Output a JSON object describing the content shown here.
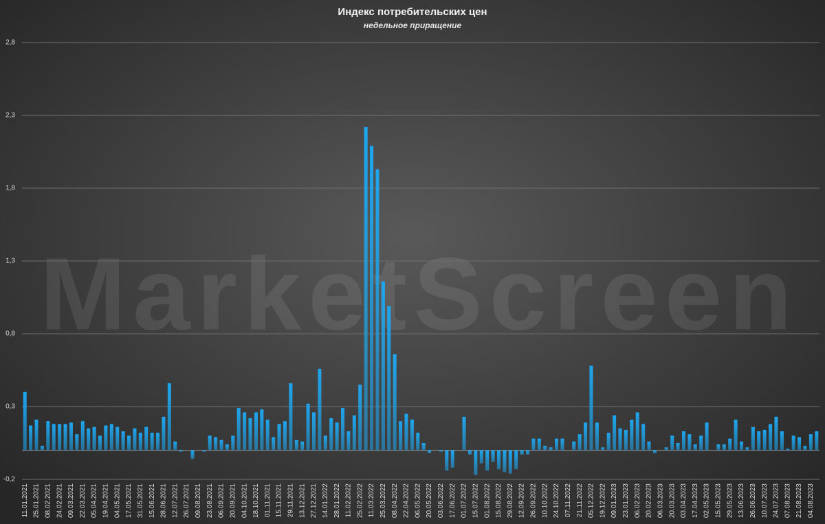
{
  "chart_data": {
    "type": "bar",
    "title": "Индекс потребительских цен",
    "subtitle": "недельное приращение",
    "watermark": "MarketScreen",
    "categories": [
      "11.01.2021",
      null,
      "25.01.2021",
      null,
      "08.02.2021",
      null,
      "24.02.2021",
      null,
      "09.03.2021",
      null,
      "22.03.2021",
      null,
      "05.04.2021",
      null,
      "19.04.2021",
      null,
      "04.05.2021",
      null,
      "17.05.2021",
      null,
      "31.05.2021",
      null,
      "15.06.2021",
      null,
      "28.06.2021",
      null,
      "12.07.2021",
      null,
      "26.07.2021",
      null,
      "09.08.2021",
      null,
      "23.08.2021",
      null,
      "06.09.2021",
      null,
      "20.09.2021",
      null,
      "04.10.2021",
      null,
      "18.10.2021",
      null,
      "01.11.2021",
      null,
      "15.11.2021",
      null,
      "29.11.2021",
      null,
      "13.12.2021",
      null,
      "27.12.2021",
      null,
      "14.01.2022",
      null,
      "28.01.2022",
      null,
      "11.02.2022",
      null,
      "25.02.2022",
      null,
      "11.03.2022",
      null,
      "25.03.2022",
      null,
      "08.04.2022",
      null,
      "22.04.2022",
      null,
      "06.05.2022",
      null,
      "20.05.2022",
      null,
      "03.06.2022",
      null,
      "17.06.2022",
      null,
      "01.07.2022",
      null,
      "15.07.2022",
      null,
      "01.08.2022",
      null,
      "15.08.2022",
      null,
      "29.08.2022",
      null,
      "12.09.2022",
      null,
      "26.09.2022",
      null,
      "10.10.2022",
      null,
      "24.10.2022",
      null,
      "07.11.2022",
      null,
      "21.11.2022",
      null,
      "05.12.2022",
      null,
      "19.12.2022",
      null,
      "09.01.2023",
      null,
      "23.01.2023",
      null,
      "06.02.2023",
      null,
      "20.02.2023",
      null,
      "06.03.2023",
      null,
      "20.03.2023",
      null,
      "03.04.2023",
      null,
      "17.04.2023",
      null,
      "02.05.2023",
      null,
      "15.05.2023",
      null,
      "29.05.2023",
      null,
      "13.06.2023",
      null,
      "26.06.2023",
      null,
      "10.07.2023",
      null,
      "24.07.2023",
      null,
      "07.08.2023",
      null,
      "21.08.2023",
      null,
      "04.08.2023",
      null
    ],
    "values": [
      0.4,
      0.17,
      0.21,
      0.03,
      0.2,
      0.18,
      0.18,
      0.18,
      0.19,
      0.11,
      0.2,
      0.15,
      0.16,
      0.1,
      0.17,
      0.18,
      0.16,
      0.13,
      0.1,
      0.15,
      0.12,
      0.16,
      0.12,
      0.12,
      0.23,
      0.46,
      0.06,
      -0.01,
      0,
      -0.06,
      0,
      -0.01,
      0.1,
      0.09,
      0.07,
      0.04,
      0.1,
      0.29,
      0.26,
      0.22,
      0.26,
      0.28,
      0.21,
      0.09,
      0.18,
      0.2,
      0.46,
      0.07,
      0.06,
      0.32,
      0.26,
      0.56,
      0.1,
      0.22,
      0.19,
      0.29,
      0.13,
      0.24,
      0.45,
      2.22,
      2.09,
      1.93,
      1.16,
      0.99,
      0.66,
      0.2,
      0.25,
      0.21,
      0.12,
      0.05,
      -0.02,
      0,
      -0.01,
      -0.14,
      -0.12,
      0,
      0.23,
      -0.03,
      -0.17,
      -0.09,
      -0.14,
      -0.08,
      -0.13,
      -0.15,
      -0.16,
      -0.13,
      -0.03,
      -0.03,
      0.08,
      0.08,
      0.03,
      0.02,
      0.08,
      0.08,
      0,
      0.06,
      0.11,
      0.19,
      0.58,
      0.19,
      0.02,
      0.12,
      0.24,
      0.15,
      0.14,
      0.21,
      0.26,
      0.18,
      0.06,
      -0.02,
      0,
      0.02,
      0.1,
      0.05,
      0.13,
      0.11,
      0.04,
      0.1,
      0.19,
      0,
      0.04,
      0.04,
      0.08,
      0.21,
      0.06,
      0.02,
      0.16,
      0.13,
      0.14,
      0.18,
      0.23,
      0.13,
      0.01,
      0.1,
      0.09,
      0.03,
      0.11,
      0.13
    ],
    "color": "#1ea6ee",
    "ylim": [
      -0.2,
      2.8
    ],
    "yticks": [
      {
        "value": -0.2,
        "label": "-0,2"
      },
      {
        "value": 0.3,
        "label": "0,3"
      },
      {
        "value": 0.8,
        "label": "0,8"
      },
      {
        "value": 1.3,
        "label": "1,3"
      },
      {
        "value": 1.8,
        "label": "1,8"
      },
      {
        "value": 2.3,
        "label": "2,3"
      },
      {
        "value": 2.8,
        "label": "2,8"
      }
    ],
    "grid": true
  }
}
